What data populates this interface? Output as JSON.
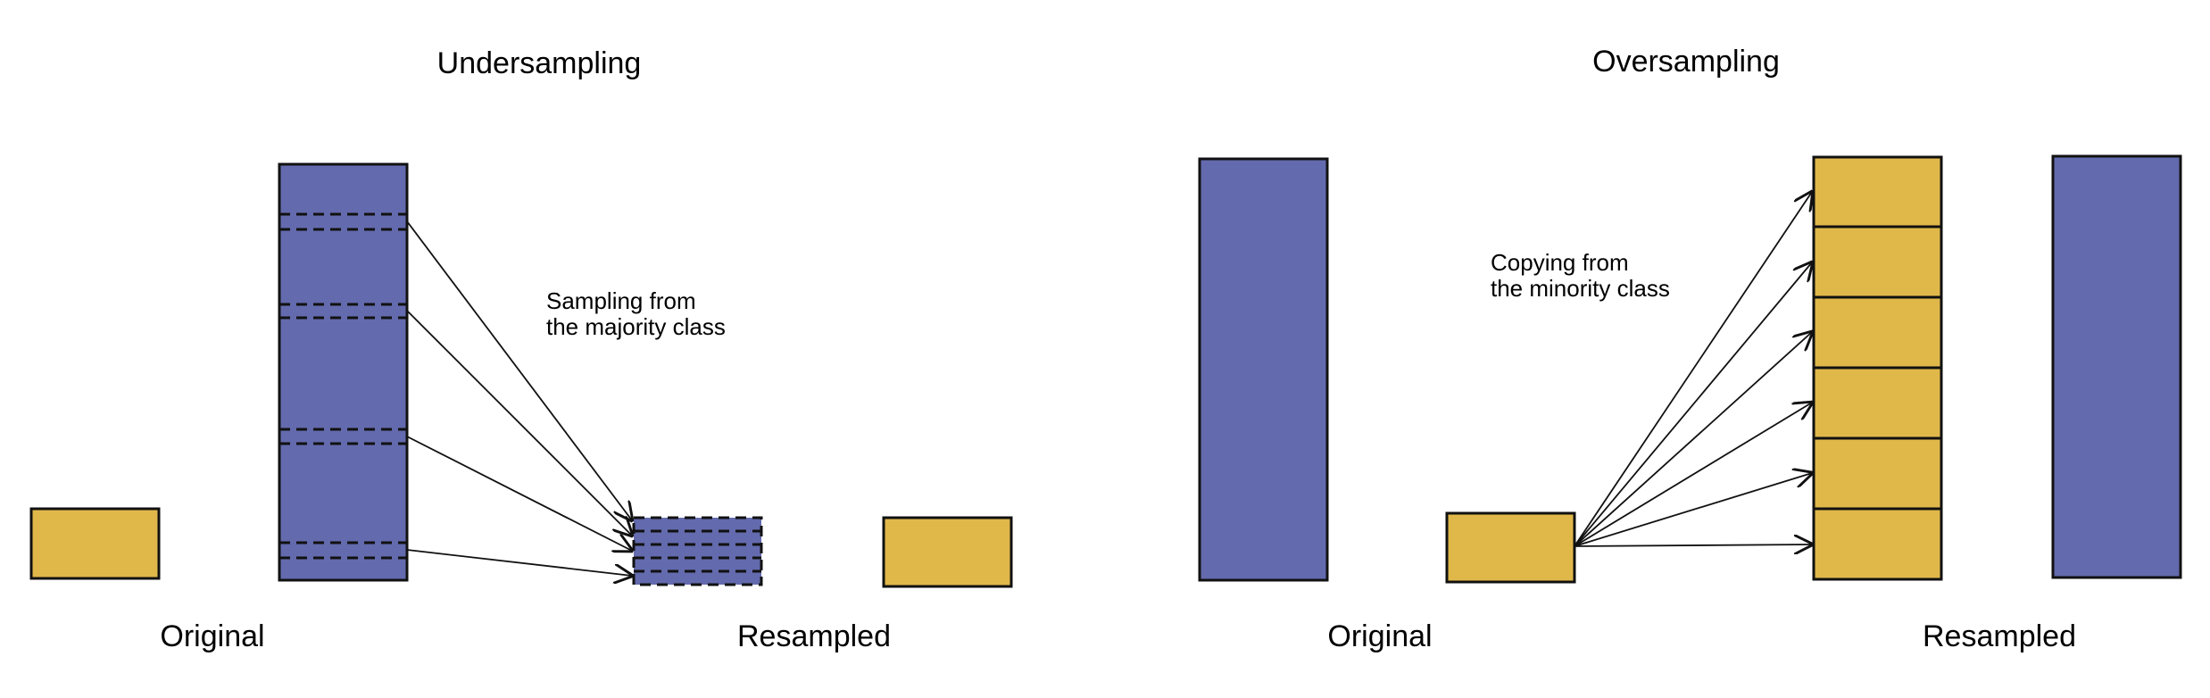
{
  "colors": {
    "majority": "#636aad",
    "minority": "#e0b84a",
    "stroke": "#111111"
  },
  "undersampling": {
    "title": "Undersampling",
    "annotation": [
      "Sampling from",
      "the majority class"
    ],
    "original_label": "Original",
    "resampled_label": "Resampled"
  },
  "oversampling": {
    "title": "Oversampling",
    "annotation": [
      "Copying from",
      "the minority class"
    ],
    "original_label": "Original",
    "resampled_label": "Resampled"
  }
}
